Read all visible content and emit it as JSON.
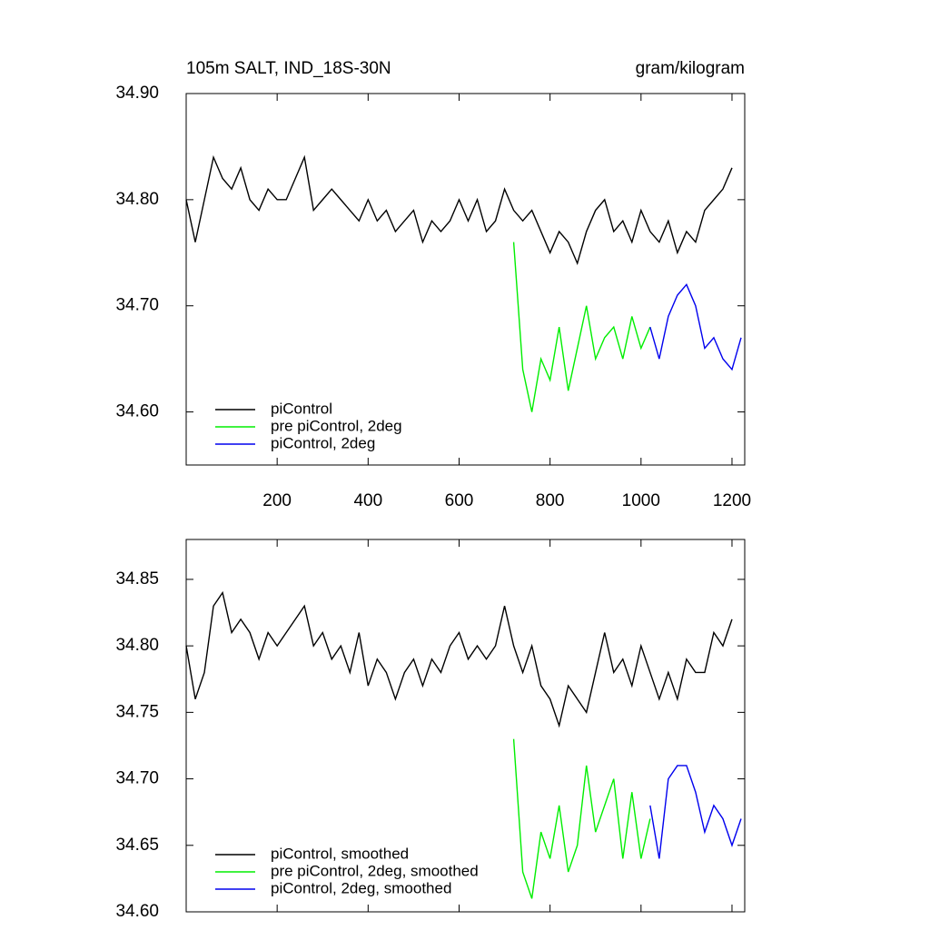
{
  "chart_data": [
    {
      "type": "line",
      "title": "105m SALT, IND_18S-30N",
      "units": "gram/kilogram",
      "xlim": [
        0,
        1228
      ],
      "xticks": [
        200,
        400,
        600,
        800,
        1000,
        1200
      ],
      "xtick_labels": true,
      "ylim": [
        34.55,
        34.9
      ],
      "yticks": [
        {
          "value": 34.6,
          "label": "34.60"
        },
        {
          "value": 34.7,
          "label": "34.70"
        },
        {
          "value": 34.8,
          "label": "34.80"
        },
        {
          "value": 34.9,
          "label": "34.90"
        }
      ],
      "series": [
        {
          "name": "piControl",
          "color": "#000000",
          "x": [
            0,
            20,
            40,
            60,
            80,
            100,
            120,
            140,
            160,
            180,
            200,
            220,
            240,
            260,
            280,
            300,
            320,
            340,
            360,
            380,
            400,
            420,
            440,
            460,
            480,
            500,
            520,
            540,
            560,
            580,
            600,
            620,
            640,
            660,
            680,
            700,
            720,
            740,
            760,
            780,
            800,
            820,
            840,
            860,
            880,
            900,
            920,
            940,
            960,
            980,
            1000,
            1020,
            1040,
            1060,
            1080,
            1100,
            1120,
            1140,
            1160,
            1180,
            1200
          ],
          "values": [
            34.8,
            34.76,
            34.8,
            34.84,
            34.82,
            34.81,
            34.83,
            34.8,
            34.79,
            34.81,
            34.8,
            34.8,
            34.82,
            34.84,
            34.79,
            34.8,
            34.81,
            34.8,
            34.79,
            34.78,
            34.8,
            34.78,
            34.79,
            34.77,
            34.78,
            34.79,
            34.76,
            34.78,
            34.77,
            34.78,
            34.8,
            34.78,
            34.8,
            34.77,
            34.78,
            34.81,
            34.79,
            34.78,
            34.79,
            34.77,
            34.75,
            34.77,
            34.76,
            34.74,
            34.77,
            34.79,
            34.8,
            34.77,
            34.78,
            34.76,
            34.79,
            34.77,
            34.76,
            34.78,
            34.75,
            34.77,
            34.76,
            34.79,
            34.8,
            34.81,
            34.83
          ]
        },
        {
          "name": "pre piControl, 2deg",
          "color": "#00ee00",
          "x": [
            720,
            740,
            760,
            780,
            800,
            820,
            840,
            860,
            880,
            900,
            920,
            940,
            960,
            980,
            1000,
            1020
          ],
          "values": [
            34.76,
            34.64,
            34.6,
            34.65,
            34.63,
            34.68,
            34.62,
            34.66,
            34.7,
            34.65,
            34.67,
            34.68,
            34.65,
            34.69,
            34.66,
            34.68
          ]
        },
        {
          "name": "piControl, 2deg",
          "color": "#0000ee",
          "x": [
            1020,
            1040,
            1060,
            1080,
            1100,
            1120,
            1140,
            1160,
            1180,
            1200,
            1220
          ],
          "values": [
            34.68,
            34.65,
            34.69,
            34.71,
            34.72,
            34.7,
            34.66,
            34.67,
            34.65,
            34.64,
            34.67
          ]
        }
      ]
    },
    {
      "type": "line",
      "xlim": [
        0,
        1228
      ],
      "xticks": [
        200,
        400,
        600,
        800,
        1000,
        1200
      ],
      "xtick_labels": false,
      "ylim": [
        34.6,
        34.88
      ],
      "yticks": [
        {
          "value": 34.6,
          "label": "34.60"
        },
        {
          "value": 34.65,
          "label": "34.65"
        },
        {
          "value": 34.7,
          "label": "34.70"
        },
        {
          "value": 34.75,
          "label": "34.75"
        },
        {
          "value": 34.8,
          "label": "34.80"
        },
        {
          "value": 34.85,
          "label": "34.85"
        }
      ],
      "series": [
        {
          "name": "piControl, smoothed",
          "color": "#000000",
          "x": [
            0,
            20,
            40,
            60,
            80,
            100,
            120,
            140,
            160,
            180,
            200,
            220,
            240,
            260,
            280,
            300,
            320,
            340,
            360,
            380,
            400,
            420,
            440,
            460,
            480,
            500,
            520,
            540,
            560,
            580,
            600,
            620,
            640,
            660,
            680,
            700,
            720,
            740,
            760,
            780,
            800,
            820,
            840,
            860,
            880,
            900,
            920,
            940,
            960,
            980,
            1000,
            1020,
            1040,
            1060,
            1080,
            1100,
            1120,
            1140,
            1160,
            1180,
            1200
          ],
          "values": [
            34.8,
            34.76,
            34.78,
            34.83,
            34.84,
            34.81,
            34.82,
            34.81,
            34.79,
            34.81,
            34.8,
            34.81,
            34.82,
            34.83,
            34.8,
            34.81,
            34.79,
            34.8,
            34.78,
            34.81,
            34.77,
            34.79,
            34.78,
            34.76,
            34.78,
            34.79,
            34.77,
            34.79,
            34.78,
            34.8,
            34.81,
            34.79,
            34.8,
            34.79,
            34.8,
            34.83,
            34.8,
            34.78,
            34.8,
            34.77,
            34.76,
            34.74,
            34.77,
            34.76,
            34.75,
            34.78,
            34.81,
            34.78,
            34.79,
            34.77,
            34.8,
            34.78,
            34.76,
            34.78,
            34.76,
            34.79,
            34.78,
            34.78,
            34.81,
            34.8,
            34.82
          ]
        },
        {
          "name": "pre piControl, 2deg, smoothed",
          "color": "#00ee00",
          "x": [
            720,
            740,
            760,
            780,
            800,
            820,
            840,
            860,
            880,
            900,
            920,
            940,
            960,
            980,
            1000,
            1020
          ],
          "values": [
            34.73,
            34.63,
            34.61,
            34.66,
            34.64,
            34.68,
            34.63,
            34.65,
            34.71,
            34.66,
            34.68,
            34.7,
            34.64,
            34.69,
            34.64,
            34.67
          ]
        },
        {
          "name": "piControl, 2deg, smoothed",
          "color": "#0000ee",
          "x": [
            1020,
            1040,
            1060,
            1080,
            1100,
            1120,
            1140,
            1160,
            1180,
            1200,
            1220
          ],
          "values": [
            34.68,
            34.64,
            34.7,
            34.71,
            34.71,
            34.69,
            34.66,
            34.68,
            34.67,
            34.65,
            34.67
          ]
        }
      ]
    }
  ]
}
